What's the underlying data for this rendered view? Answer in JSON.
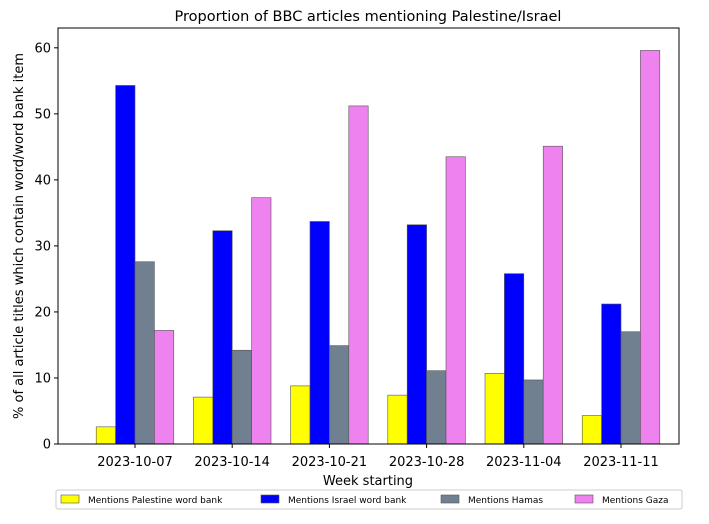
{
  "chart_data": {
    "type": "bar",
    "title": "Proportion of BBC articles mentioning Palestine/Israel",
    "xlabel": "Week starting",
    "ylabel": "% of all article titles which contain word/word bank item",
    "categories": [
      "2023-10-07",
      "2023-10-14",
      "2023-10-21",
      "2023-10-28",
      "2023-11-04",
      "2023-11-11"
    ],
    "ylim": [
      0,
      63
    ],
    "yticks": [
      0,
      10,
      20,
      30,
      40,
      50,
      60
    ],
    "grid": false,
    "legend_position": "bottom",
    "series": [
      {
        "name": "Mentions Palestine word bank",
        "color": "#ffff00",
        "values": [
          2.6,
          7.1,
          8.8,
          7.4,
          10.7,
          4.3
        ]
      },
      {
        "name": "Mentions Israel word bank",
        "color": "#0000ff",
        "values": [
          54.3,
          32.3,
          33.7,
          33.2,
          25.8,
          21.2
        ]
      },
      {
        "name": "Mentions Hamas",
        "color": "#708090",
        "values": [
          27.6,
          14.2,
          14.9,
          11.1,
          9.7,
          17.0
        ]
      },
      {
        "name": "Mentions Gaza",
        "color": "#ee82ee",
        "values": [
          17.2,
          37.3,
          51.2,
          43.5,
          45.1,
          59.6
        ]
      }
    ]
  }
}
